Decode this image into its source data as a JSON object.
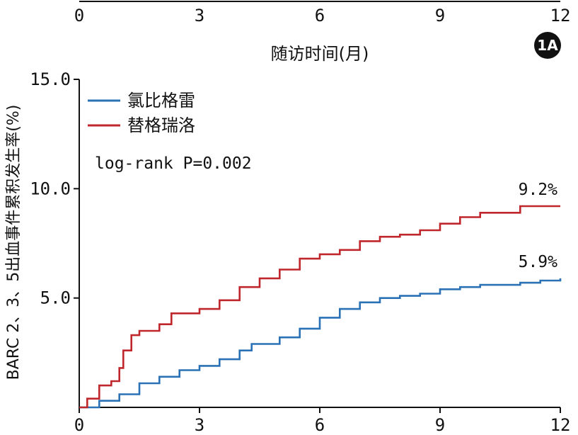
{
  "top_axis": {
    "tick_labels": [
      "0",
      "3",
      "6",
      "9",
      "12"
    ],
    "label": "随访时间(月)"
  },
  "badge": "1A",
  "chart_data": {
    "type": "line",
    "title": "",
    "xlabel": "",
    "ylabel": "BARC 2、3、5出血事件累积发生率(%)",
    "xlim": [
      0,
      12
    ],
    "ylim": [
      0,
      15
    ],
    "x_ticks": [
      0,
      3,
      6,
      9,
      12
    ],
    "x_tick_labels": [
      "0",
      "3",
      "6",
      "9",
      "12"
    ],
    "y_ticks": [
      5,
      10,
      15
    ],
    "y_tick_labels": [
      "5.0",
      "10.0",
      "15.0"
    ],
    "grid": false,
    "legend_position": "top-left",
    "annotation": "log-rank P=0.002",
    "series": [
      {
        "name": "氯比格雷",
        "color": "#2a72b5",
        "end_label": "5.9%",
        "points": [
          [
            0,
            0
          ],
          [
            0.5,
            0.3
          ],
          [
            1.0,
            0.6
          ],
          [
            1.5,
            1.1
          ],
          [
            2.0,
            1.4
          ],
          [
            2.5,
            1.7
          ],
          [
            3.0,
            1.9
          ],
          [
            3.5,
            2.2
          ],
          [
            4.0,
            2.6
          ],
          [
            4.3,
            2.9
          ],
          [
            5.0,
            3.2
          ],
          [
            5.5,
            3.6
          ],
          [
            6.0,
            4.1
          ],
          [
            6.5,
            4.5
          ],
          [
            7.0,
            4.8
          ],
          [
            7.5,
            5.0
          ],
          [
            8.0,
            5.1
          ],
          [
            8.5,
            5.2
          ],
          [
            9.0,
            5.4
          ],
          [
            9.5,
            5.5
          ],
          [
            10.0,
            5.6
          ],
          [
            11.0,
            5.7
          ],
          [
            11.5,
            5.8
          ],
          [
            12.0,
            5.9
          ]
        ]
      },
      {
        "name": "替格瑞洛",
        "color": "#c0272d",
        "end_label": "9.2%",
        "points": [
          [
            0,
            0
          ],
          [
            0.2,
            0.4
          ],
          [
            0.5,
            1.0
          ],
          [
            0.8,
            1.2
          ],
          [
            1.0,
            1.8
          ],
          [
            1.1,
            2.6
          ],
          [
            1.3,
            3.3
          ],
          [
            1.5,
            3.5
          ],
          [
            2.0,
            3.8
          ],
          [
            2.3,
            4.3
          ],
          [
            3.0,
            4.5
          ],
          [
            3.5,
            4.9
          ],
          [
            4.0,
            5.5
          ],
          [
            4.5,
            5.9
          ],
          [
            5.0,
            6.3
          ],
          [
            5.5,
            6.8
          ],
          [
            6.0,
            7.0
          ],
          [
            6.5,
            7.2
          ],
          [
            7.0,
            7.6
          ],
          [
            7.5,
            7.8
          ],
          [
            8.0,
            7.9
          ],
          [
            8.5,
            8.1
          ],
          [
            9.0,
            8.4
          ],
          [
            9.5,
            8.7
          ],
          [
            10.0,
            8.9
          ],
          [
            11.0,
            9.2
          ],
          [
            12.0,
            9.2
          ]
        ]
      }
    ]
  }
}
